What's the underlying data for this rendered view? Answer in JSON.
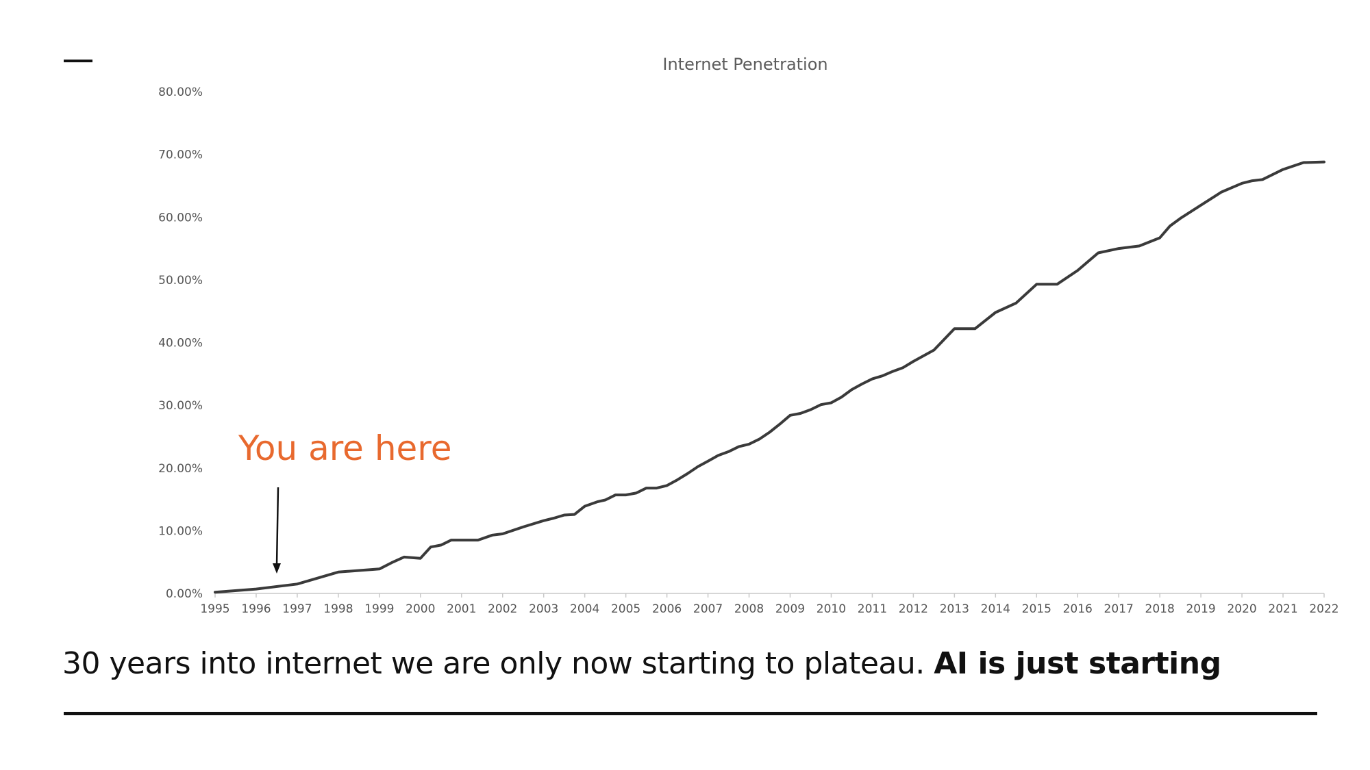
{
  "slide": {
    "dash": "—",
    "annotation": "You are here",
    "caption_regular": "30 years into internet we are only now starting to plateau.",
    "caption_bold": "AI is just starting",
    "annotation_color": "#e8692e"
  },
  "chart_data": {
    "type": "line",
    "title": "Internet Penetration",
    "xlabel": "",
    "ylabel": "",
    "xlim": [
      1995,
      2022
    ],
    "ylim": [
      0,
      80
    ],
    "y_ticks": [
      "0.00%",
      "10.00%",
      "20.00%",
      "30.00%",
      "40.00%",
      "50.00%",
      "60.00%",
      "70.00%",
      "80.00%"
    ],
    "x_ticks": [
      "1995",
      "1996",
      "1997",
      "1998",
      "1999",
      "2000",
      "2001",
      "2002",
      "2003",
      "2004",
      "2005",
      "2006",
      "2007",
      "2008",
      "2009",
      "2010",
      "2011",
      "2012",
      "2013",
      "2014",
      "2015",
      "2016",
      "2017",
      "2018",
      "2019",
      "2020",
      "2021",
      "2022"
    ],
    "line_color": "#3a3a3a",
    "grid": false,
    "legend": "none",
    "annotation": {
      "text": "You are here",
      "x": 1996.5,
      "y": 1.0
    },
    "series": [
      {
        "x": [
          1995,
          1996,
          1997,
          1998,
          1999,
          1999.3,
          1999.6,
          2000,
          2000.25,
          2000.5,
          2000.75,
          2001,
          2001.4,
          2001.75,
          2002,
          2002.5,
          2003,
          2003.25,
          2003.5,
          2003.75,
          2004,
          2004.3,
          2004.5,
          2004.75,
          2005,
          2005.25,
          2005.5,
          2005.75,
          2006,
          2006.25,
          2006.5,
          2006.75,
          2007,
          2007.25,
          2007.5,
          2007.75,
          2008,
          2008.25,
          2008.5,
          2008.75,
          2009,
          2009.25,
          2009.5,
          2009.75,
          2010,
          2010.25,
          2010.5,
          2010.75,
          2011,
          2011.25,
          2011.5,
          2011.75,
          2012,
          2012.5,
          2013,
          2013.5,
          2014,
          2014.5,
          2015,
          2015.5,
          2016,
          2016.5,
          2017,
          2017.5,
          2018,
          2018.25,
          2018.5,
          2019,
          2019.5,
          2020,
          2020.25,
          2020.5,
          2021,
          2021.5,
          2022
        ],
        "y": [
          0.2,
          0.7,
          1.5,
          3.4,
          3.9,
          4.9,
          5.8,
          5.6,
          7.4,
          7.7,
          8.5,
          8.5,
          8.5,
          9.3,
          9.5,
          10.6,
          11.6,
          12.0,
          12.5,
          12.6,
          13.9,
          14.6,
          14.9,
          15.7,
          15.7,
          16.0,
          16.8,
          16.8,
          17.2,
          18.1,
          19.1,
          20.2,
          21.1,
          22.0,
          22.6,
          23.4,
          23.8,
          24.6,
          25.7,
          27.0,
          28.4,
          28.7,
          29.3,
          30.1,
          30.4,
          31.3,
          32.5,
          33.4,
          34.2,
          34.7,
          35.4,
          36.0,
          37.0,
          38.8,
          42.2,
          42.2,
          44.8,
          46.3,
          49.3,
          49.3,
          51.5,
          54.3,
          55.0,
          55.4,
          56.7,
          58.6,
          59.8,
          61.9,
          64.0,
          65.4,
          65.8,
          66.0,
          67.6,
          68.7,
          68.8
        ]
      }
    ]
  }
}
